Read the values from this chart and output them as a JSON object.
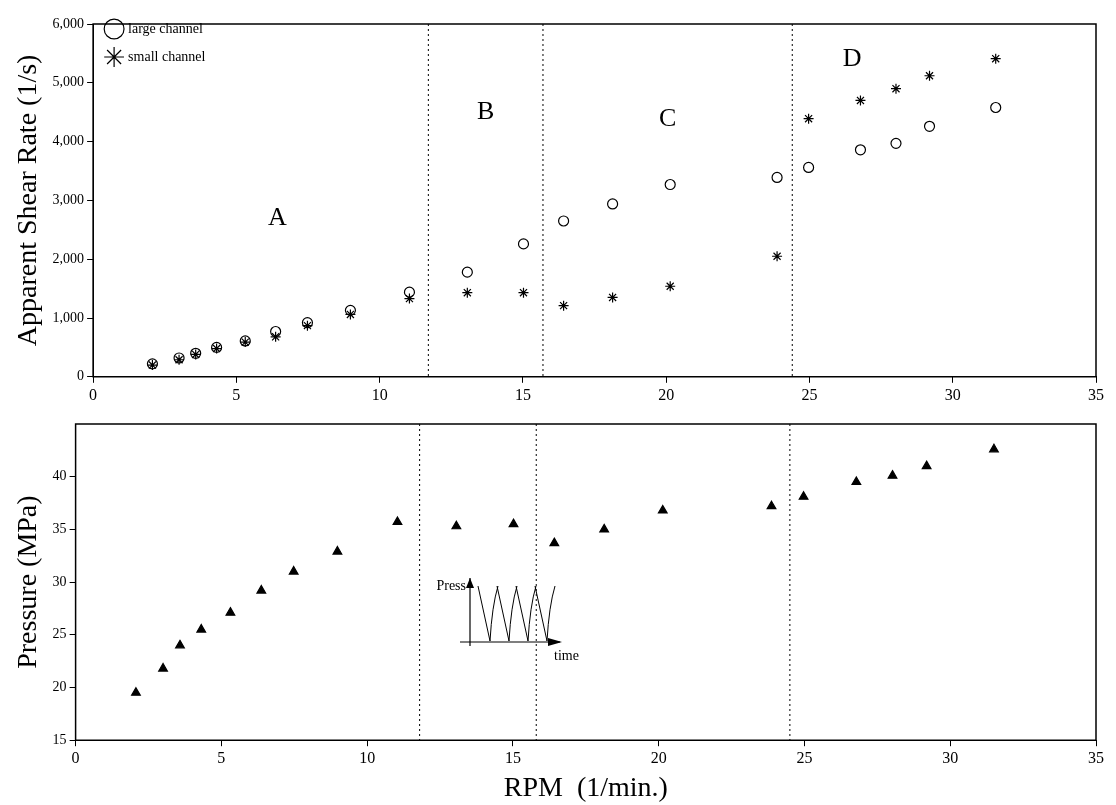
{
  "chart_data": [
    {
      "type": "scatter",
      "ylabel": "Apparent Shear Rate (1/s)",
      "xlim": [
        0,
        35
      ],
      "xticks": [
        0,
        5,
        10,
        15,
        20,
        25,
        30,
        35
      ],
      "ylim": [
        0,
        6000
      ],
      "yticks": [
        0,
        {
          "value": 1000,
          "label": "1,000"
        },
        {
          "value": 2000,
          "label": "2,000"
        },
        {
          "value": 3000,
          "label": "3,000"
        },
        {
          "value": 4000,
          "label": "4,000"
        },
        {
          "value": 5000,
          "label": "5,000"
        },
        {
          "value": 6000,
          "label": "6,000"
        }
      ],
      "legend": "top left",
      "x": [
        2.07,
        3.0,
        3.58,
        4.31,
        5.31,
        6.37,
        7.48,
        8.98,
        11.04,
        13.06,
        15.02,
        16.42,
        18.13,
        20.14,
        23.87,
        24.97,
        26.78,
        28.02,
        29.19,
        31.5
      ],
      "series": [
        {
          "name": "large channel",
          "color": "#000000",
          "marker": "circle",
          "values": [
            220,
            320,
            400,
            500,
            610,
            770,
            920,
            1130,
            1440,
            1780,
            2260,
            2650,
            2940,
            3270,
            3390,
            3560,
            3860,
            3970,
            4260,
            4580
          ]
        },
        {
          "name": "small channel",
          "color": "#000000",
          "marker": "cross",
          "values": [
            200,
            290,
            380,
            480,
            590,
            680,
            870,
            1060,
            1330,
            1430,
            1430,
            1210,
            1350,
            1540,
            2050,
            4390,
            4700,
            4900,
            5120,
            5410
          ]
        }
      ],
      "ref_lines": [
        {
          "axis": "x",
          "value": 11.7,
          "color": "#000000",
          "line_style": "dotted"
        },
        {
          "axis": "x",
          "value": 15.7,
          "color": "#000000",
          "line_style": "dotted"
        },
        {
          "axis": "x",
          "value": 24.4,
          "color": "#000000",
          "line_style": "dotted"
        }
      ],
      "annotations": [
        "A",
        "B",
        "C",
        "D"
      ]
    },
    {
      "type": "scatter",
      "xlabel": "RPM  (1/min.)",
      "ylabel": "Pressure (MPa)",
      "xlim": [
        0,
        35
      ],
      "xticks": [
        0,
        5,
        10,
        15,
        20,
        25,
        30,
        35
      ],
      "ylim": [
        15,
        45
      ],
      "yticks": [
        15,
        20,
        25,
        30,
        35,
        40
      ],
      "x": [
        2.07,
        3.0,
        3.58,
        4.31,
        5.31,
        6.37,
        7.48,
        8.98,
        11.04,
        13.06,
        15.02,
        16.42,
        18.13,
        20.14,
        23.87,
        24.97,
        26.78,
        28.02,
        29.19,
        31.5
      ],
      "series": [
        {
          "color": "#000000",
          "marker": "triangle",
          "values": [
            19.5,
            21.8,
            24.0,
            25.5,
            27.1,
            29.2,
            31.0,
            32.9,
            35.7,
            35.3,
            35.5,
            33.7,
            35.0,
            36.8,
            37.2,
            38.1,
            39.5,
            40.1,
            41.0,
            42.6
          ]
        }
      ],
      "ref_lines": [
        {
          "axis": "x",
          "value": 11.8,
          "color": "#000000",
          "line_style": "dotted"
        },
        {
          "axis": "x",
          "value": 15.8,
          "color": "#000000",
          "line_style": "dotted"
        },
        {
          "axis": "x",
          "value": 24.5,
          "color": "#000000",
          "line_style": "dotted"
        }
      ],
      "annotations": [
        "Press",
        "time"
      ]
    }
  ]
}
